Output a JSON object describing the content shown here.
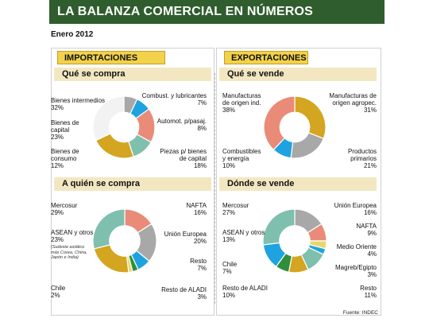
{
  "title": "LA BALANZA COMERCIAL EN NÚMEROS",
  "date": "Enero 2012",
  "footer": "Fuente: INDEC",
  "importaciones": {
    "header": "IMPORTACIONES",
    "que_label": "Qué se compra",
    "quien_label": "A quién se compra",
    "quien_note": "(Sudeste asiático más Corea, China, Japón e India)"
  },
  "exportaciones": {
    "header": "EXPORTACIONES",
    "que_label": "Qué se vende",
    "donde_label": "Dónde se vende"
  },
  "chart_data": [
    {
      "type": "pie",
      "title": "Qué se compra",
      "categories": [
        "Combust. y lubricantes",
        "Automot. p/pasaj.",
        "Piezas p/ bienes de capital",
        "Bienes de consumo",
        "Bienes de capital",
        "Bienes intermedios"
      ],
      "values": [
        7,
        8,
        18,
        12,
        23,
        32
      ],
      "labels": [
        "7%",
        "8%",
        "18%",
        "12%",
        "23%",
        "32%"
      ],
      "colors": [
        "#a8a8a8",
        "#1fa3e0",
        "#e98b78",
        "#7fbfad",
        "#d4a520",
        "#f2f2f2"
      ]
    },
    {
      "type": "pie",
      "title": "Qué se vende",
      "categories": [
        "Manufacturas de origen agropec.",
        "Productos primarios",
        "Combustibles y energía",
        "Manufacturas de origen ind."
      ],
      "values": [
        31,
        21,
        10,
        38
      ],
      "labels": [
        "31%",
        "21%",
        "10%",
        "38%"
      ],
      "colors": [
        "#d4a520",
        "#a8a8a8",
        "#1fa3e0",
        "#e98b78"
      ]
    },
    {
      "type": "pie",
      "title": "A quién se compra",
      "categories": [
        "NAFTA",
        "Unión Europea",
        "Resto",
        "Resto de ALADI",
        "Chile",
        "ASEAN y otros",
        "Mercosur"
      ],
      "values": [
        16,
        20,
        7,
        3,
        2,
        23,
        29
      ],
      "labels": [
        "16%",
        "20%",
        "7%",
        "3%",
        "2%",
        "23%",
        "29%"
      ],
      "colors": [
        "#e98b78",
        "#a8a8a8",
        "#1fa3e0",
        "#2f8f3a",
        "#e8d86a",
        "#d4a520",
        "#7fbfad"
      ]
    },
    {
      "type": "pie",
      "title": "Dónde se vende",
      "categories": [
        "Unión Europea",
        "NAFTA",
        "Medio Oriente",
        "Magreb/Egipto",
        "Resto",
        "Resto de ALADI",
        "Chile",
        "ASEAN y otros",
        "Mercosur"
      ],
      "values": [
        16,
        9,
        4,
        3,
        11,
        10,
        7,
        13,
        27
      ],
      "labels": [
        "16%",
        "9%",
        "4%",
        "3%",
        "11%",
        "10%",
        "7%",
        "13%",
        "27%"
      ],
      "colors": [
        "#a8a8a8",
        "#e98b78",
        "#e8d86a",
        "#1fa3e0",
        "#7fbfad",
        "#d4a520",
        "#2f8f3a",
        "#1fa3e0",
        "#7fbfad"
      ]
    }
  ]
}
